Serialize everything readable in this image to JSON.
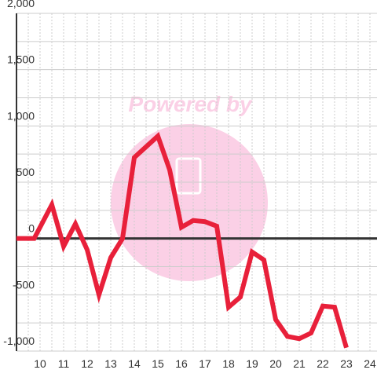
{
  "chart_data": {
    "type": "line",
    "watermark": "Powered by",
    "x": [
      9,
      9.75,
      10.5,
      11,
      11.5,
      12,
      12.5,
      13,
      13.5,
      14,
      14.5,
      15,
      15.5,
      16,
      16.5,
      17,
      17.5,
      18,
      18.5,
      19,
      19.5,
      20,
      20.5,
      21,
      21.5,
      22,
      22.5,
      23
    ],
    "series": [
      {
        "color": "#e8203a",
        "values": [
          0,
          0,
          300,
          -70,
          130,
          -100,
          -500,
          -170,
          0,
          720,
          815,
          910,
          610,
          100,
          160,
          150,
          110,
          -610,
          -520,
          -120,
          -190,
          -720,
          -870,
          -890,
          -840,
          -600,
          -610,
          -970
        ]
      }
    ],
    "xlim": [
      9,
      24.3
    ],
    "ylim": [
      -1000,
      2000
    ],
    "xticks": [
      10,
      11,
      12,
      13,
      14,
      15,
      16,
      17,
      18,
      19,
      20,
      21,
      22,
      23,
      24
    ],
    "x_minor_ticks": [
      9.5,
      10.5,
      11.5,
      12.5,
      13.5,
      14.5,
      15.5,
      16.5,
      17.5,
      18.5,
      19.5,
      20.5,
      21.5,
      22.5,
      23.5
    ],
    "yticks": [
      {
        "value": -1000,
        "label": "-1,000"
      },
      -500,
      0,
      500,
      {
        "value": 1000,
        "label": "1,000"
      },
      {
        "value": 1500,
        "label": "1,500"
      },
      {
        "value": 2000,
        "label": "2,000"
      }
    ],
    "y_minor_ticks": [
      -750,
      -250,
      250,
      750,
      1250,
      1750
    ],
    "grid": true
  }
}
